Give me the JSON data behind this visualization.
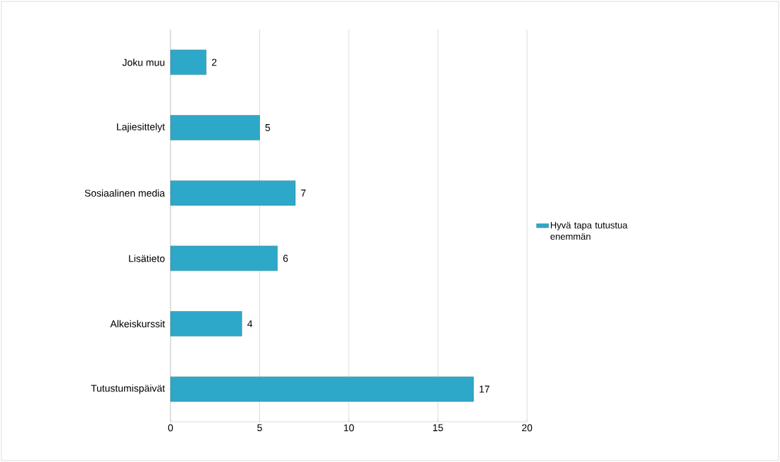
{
  "chart_data": {
    "type": "bar",
    "orientation": "horizontal",
    "categories": [
      "Joku muu",
      "Lajiesittelyt",
      "Sosiaalinen media",
      "Lisätieto",
      "Alkeiskurssit",
      "Tutustumispäivät"
    ],
    "series": [
      {
        "name": "Hyvä tapa tutustua enemmän",
        "color": "#2ea8c8",
        "values": [
          2,
          5,
          7,
          6,
          4,
          17
        ]
      }
    ],
    "xlim": [
      0,
      20
    ],
    "xticks": [
      0,
      5,
      10,
      15,
      20
    ],
    "grid": "x",
    "legend": "right",
    "data_labels": true
  }
}
